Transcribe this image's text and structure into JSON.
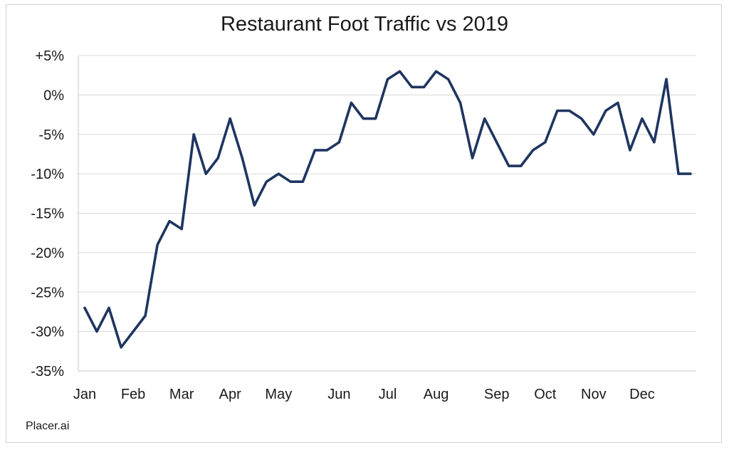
{
  "chart_data": {
    "type": "line",
    "title": "Restaurant Foot Traffic vs 2019",
    "xlabel": "",
    "ylabel": "",
    "ylim": [
      -35,
      5
    ],
    "yticks": [
      "+5%",
      "0%",
      "-5%",
      "-10%",
      "-15%",
      "-20%",
      "-25%",
      "-30%",
      "-35%"
    ],
    "ytick_values": [
      5,
      0,
      -5,
      -10,
      -15,
      -20,
      -25,
      -30,
      -35
    ],
    "month_labels": [
      {
        "label": "Jan",
        "week": 0
      },
      {
        "label": "Feb",
        "week": 4
      },
      {
        "label": "Mar",
        "week": 8
      },
      {
        "label": "Apr",
        "week": 12
      },
      {
        "label": "May",
        "week": 16
      },
      {
        "label": "Jun",
        "week": 21
      },
      {
        "label": "Jul",
        "week": 25
      },
      {
        "label": "Aug",
        "week": 29
      },
      {
        "label": "Sep",
        "week": 34
      },
      {
        "label": "Oct",
        "week": 38
      },
      {
        "label": "Nov",
        "week": 42
      },
      {
        "label": "Dec",
        "week": 46
      }
    ],
    "grid": true,
    "series": [
      {
        "color": "#1f3560",
        "values": [
          -27,
          -30,
          -27,
          -32,
          -30,
          -28,
          -19,
          -16,
          -17,
          -5,
          -10,
          -8,
          -3,
          -8,
          -14,
          -11,
          -10,
          -11,
          -11,
          -7,
          -7,
          -6,
          -1,
          -3,
          -3,
          2,
          3,
          1,
          1,
          3,
          2,
          -1,
          -8,
          -3,
          -6,
          -9,
          -9,
          -7,
          -6,
          -2,
          -2,
          -3,
          -5,
          -2,
          -1,
          -7,
          -3,
          -6,
          2,
          -10,
          -10
        ]
      }
    ]
  },
  "source": "Placer.ai"
}
